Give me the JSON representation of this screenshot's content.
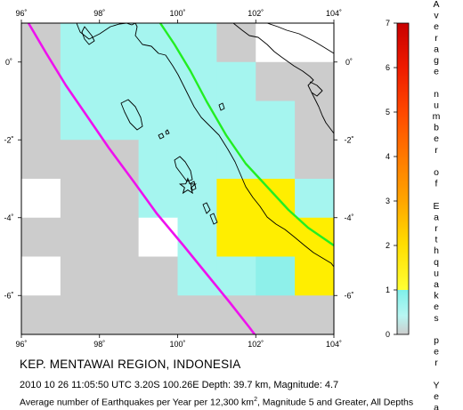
{
  "map": {
    "lon_range": [
      96,
      104
    ],
    "lat_range": [
      -7,
      1
    ],
    "lon_ticks": [
      96,
      98,
      100,
      102,
      104
    ],
    "lat_ticks": [
      0,
      -2,
      -4,
      -6
    ],
    "lon_tick_labels": [
      "96˚",
      "98˚",
      "100˚",
      "102˚",
      "104˚"
    ],
    "lat_tick_labels": [
      "0˚",
      "-2˚",
      "-4˚",
      "-6˚"
    ],
    "grid_cell_deg": 1,
    "cell_colors": {
      "none": "#ffffff",
      "gray": "#cccccc",
      "cyan": "#a5f5ef",
      "cyan_mid": "#8ef0ea",
      "cyan_light": "#bdf8f4",
      "yellow": "#ffee00"
    },
    "trench_color": "#ee11ee",
    "fault_color": "#22ee22",
    "coast_color": "#000000",
    "epicenter": {
      "lon": 100.26,
      "lat": -3.2,
      "symbol": "star"
    }
  },
  "colorbar": {
    "ticks": [
      0,
      1,
      2,
      3,
      4,
      5,
      6,
      7
    ],
    "title_words": [
      "Average",
      "number",
      "of",
      "Earthquakes",
      "per",
      "Year"
    ]
  },
  "caption": {
    "title": "KEP. MENTAWAI REGION, INDONESIA",
    "event": "2010 10 26 11:05:50 UTC 3.20S 100.26E Depth: 39.7 km, Magnitude: 4.7",
    "desc_prefix": "Average number of Earthquakes per Year per 12,300 km",
    "desc_sup": "2",
    "desc_suffix": ", Magnitude 5 and Greater, All Depths"
  }
}
